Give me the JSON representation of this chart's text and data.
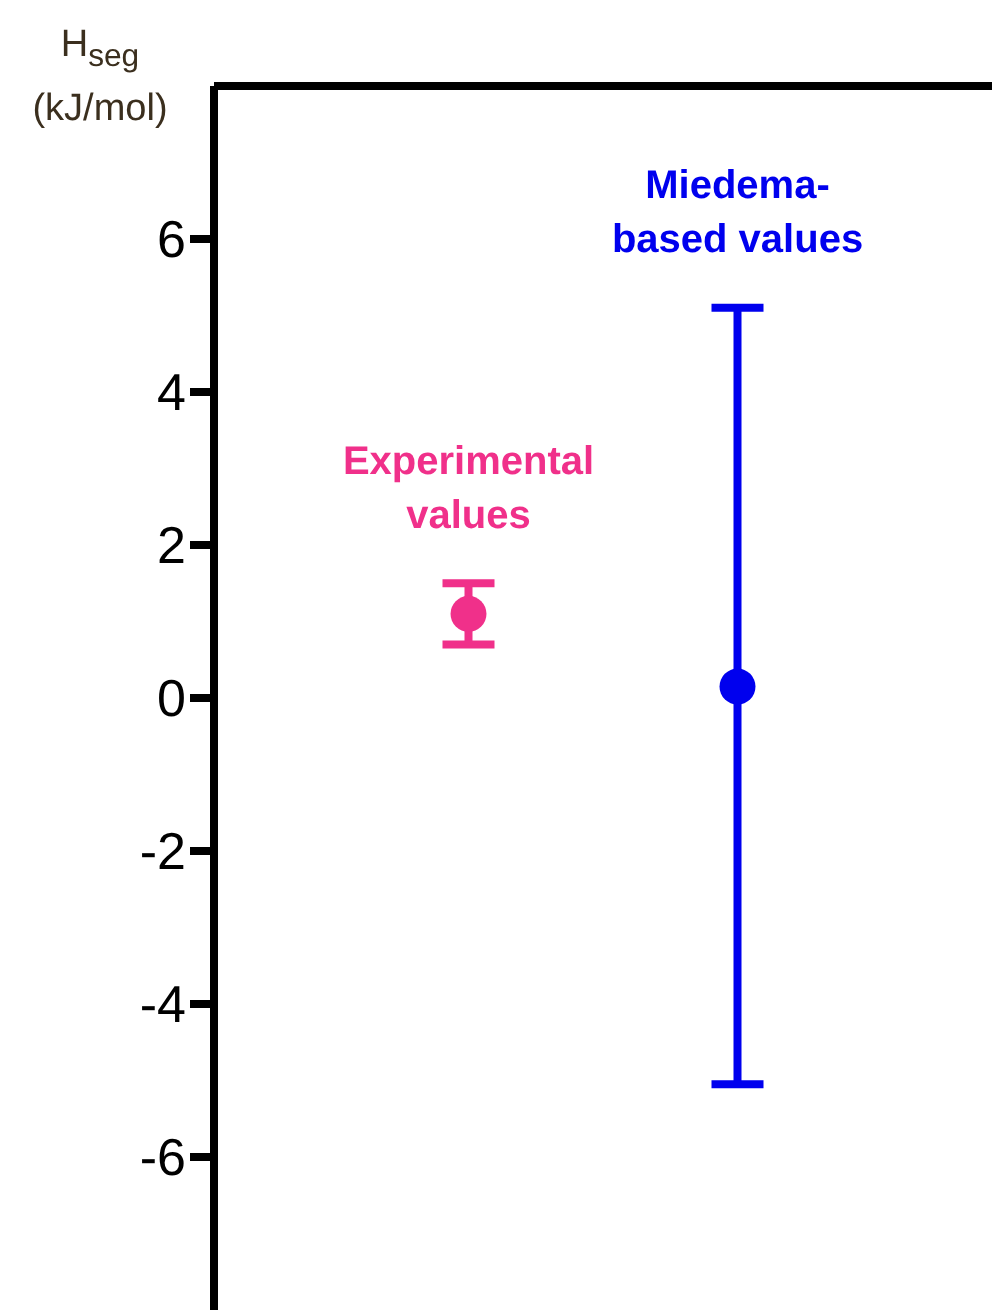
{
  "chart_data": {
    "type": "scatter",
    "ylabel": "H$_{seg}$ (kJ/mol)",
    "categories": [
      null,
      null
    ],
    "ylim": [
      -8,
      8
    ],
    "yticks": [
      -6,
      -4,
      -2,
      0,
      2,
      4,
      6
    ],
    "tick_labels": "y",
    "grid": false,
    "legend": false,
    "marker": "circle",
    "series": [
      {
        "name": "Experimental values",
        "color": "#f0308a",
        "values": [
          1.1,
          null
        ],
        "errors": [
          [
            0.7,
            1.5
          ],
          null
        ]
      },
      {
        "name": "Miedema-based values",
        "color": "#0000ee",
        "values": [
          null,
          0.15
        ],
        "errors": [
          null,
          [
            -5.05,
            5.1
          ]
        ]
      }
    ]
  }
}
